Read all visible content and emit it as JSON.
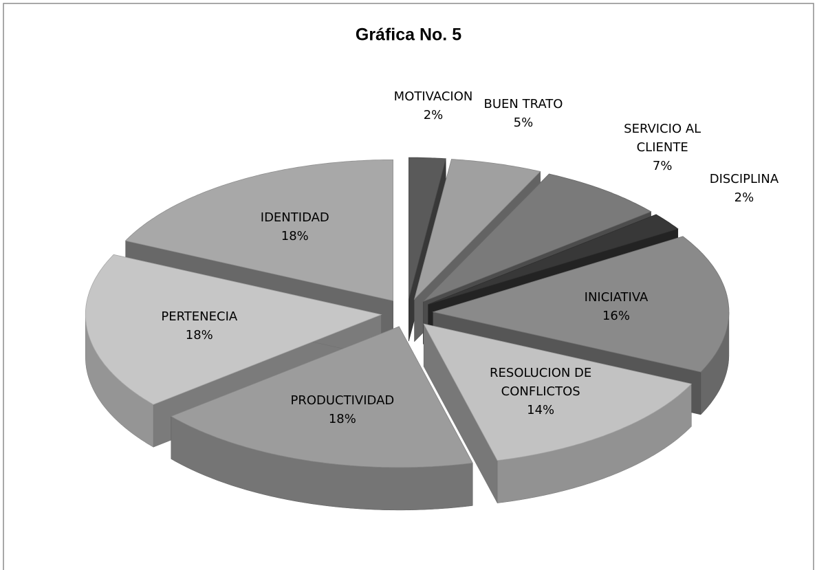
{
  "chart_data": {
    "type": "pie",
    "title": "Gráfica No. 5",
    "categories": [
      "MOTIVACION",
      "BUEN TRATO",
      "SERVICIO AL CLIENTE",
      "DISCIPLINA",
      "INICIATIVA",
      "RESOLUCION DE CONFLICTOS",
      "PRODUCTIVIDAD",
      "PERTENECIA",
      "IDENTIDAD"
    ],
    "values": [
      2,
      5,
      7,
      2,
      16,
      14,
      18,
      18,
      18
    ],
    "value_labels": [
      "2%",
      "5%",
      "7%",
      "2%",
      "16%",
      "14%",
      "18%",
      "18%",
      "18%"
    ],
    "colors": [
      "#5a5a5a",
      "#a0a0a0",
      "#7a7a7a",
      "#383838",
      "#8a8a8a",
      "#c2c2c2",
      "#9c9c9c",
      "#c6c6c6",
      "#a8a8a8"
    ]
  }
}
